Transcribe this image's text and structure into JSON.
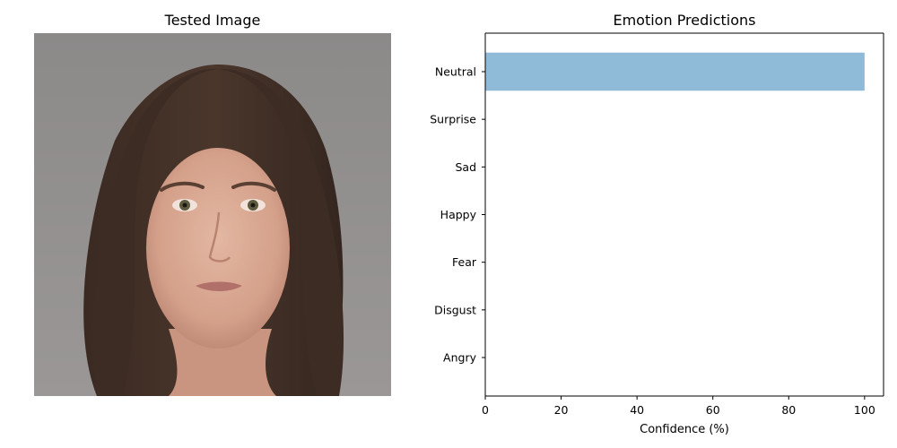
{
  "image_panel": {
    "title": "Tested Image"
  },
  "chart_data": {
    "type": "bar",
    "orientation": "horizontal",
    "title": "Emotion Predictions",
    "xlabel": "Confidence (%)",
    "ylabel": "",
    "categories": [
      "Angry",
      "Disgust",
      "Fear",
      "Happy",
      "Sad",
      "Surprise",
      "Neutral"
    ],
    "values": [
      0,
      0,
      0,
      0,
      0,
      0,
      100
    ],
    "xlim": [
      0,
      105
    ],
    "xticks": [
      0,
      20,
      40,
      60,
      80,
      100
    ],
    "bar_color": "#8fbbd9",
    "grid": false
  }
}
